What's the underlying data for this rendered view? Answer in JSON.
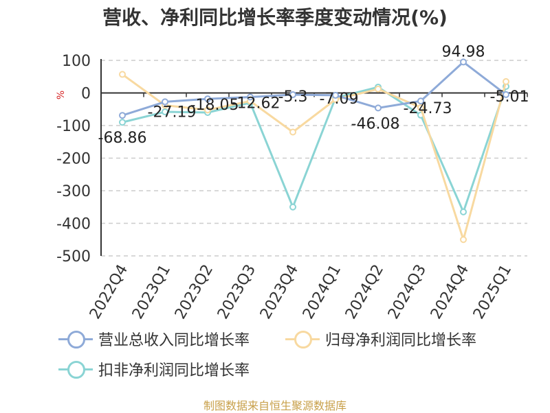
{
  "title": "营收、净利同比增长率季度变动情况(%)",
  "footer": "制图数据来自恒生聚源数据库",
  "chart_data": {
    "type": "line",
    "title": "营收、净利同比增长率季度变动情况(%)",
    "ylabel": "%",
    "xlabel": "",
    "ylim": [
      -500,
      100
    ],
    "yticks": [
      100,
      0,
      -100,
      -200,
      -300,
      -400,
      -500
    ],
    "grid": true,
    "legend_position": "bottom",
    "categories": [
      "2022Q4",
      "2023Q1",
      "2023Q2",
      "2023Q3",
      "2023Q4",
      "2024Q1",
      "2024Q2",
      "2024Q3",
      "2024Q4",
      "2025Q1"
    ],
    "series": [
      {
        "name": "营业总收入同比增长率",
        "color": "#8eaad8",
        "values": [
          -68.86,
          -27.19,
          -18.05,
          -12.62,
          -5.3,
          -7.09,
          -46.08,
          -24.73,
          94.98,
          -5.01
        ],
        "data_labels": [
          "-68.86",
          "-27.19",
          "-18.05",
          "-12.62",
          "-5.3",
          "-7.09",
          "-46.08",
          "-24.73",
          "94.98",
          "-5.01"
        ]
      },
      {
        "name": "归母净利润同比增长率",
        "color": "#f8d9a0",
        "values": [
          57,
          -38,
          -52,
          -25,
          -120,
          -20,
          12,
          -45,
          -450,
          35
        ]
      },
      {
        "name": "扣非净利润同比增长率",
        "color": "#8ad4d4",
        "values": [
          -90,
          -58,
          -60,
          -30,
          -350,
          -15,
          18,
          -68,
          -365,
          20
        ]
      }
    ]
  }
}
